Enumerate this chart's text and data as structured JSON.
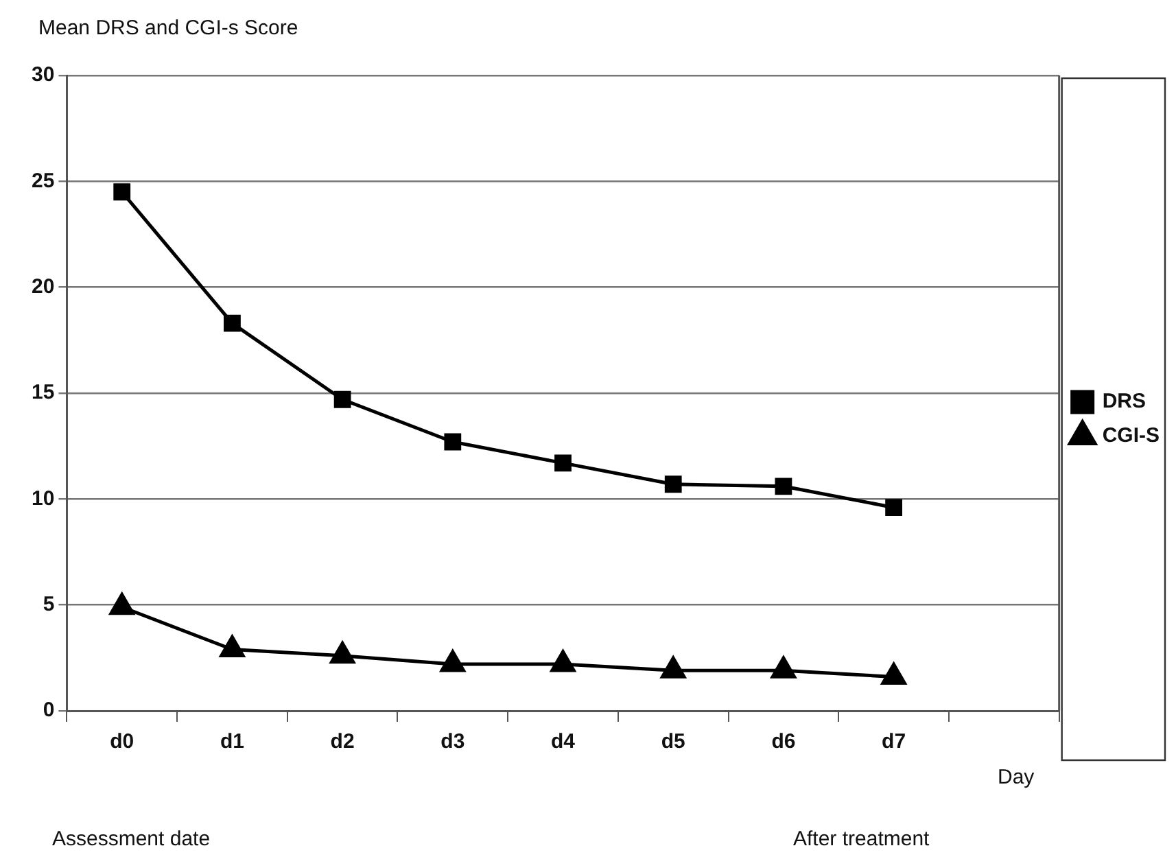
{
  "chart_data": {
    "type": "line",
    "ylabel": "Mean DRS and CGI-s Score",
    "xlabel": "Day",
    "categories": [
      "d0",
      "d1",
      "d2",
      "d3",
      "d4",
      "d5",
      "d6",
      "d7",
      null
    ],
    "series": [
      {
        "name": "DRS",
        "color": "#000000",
        "marker": "square",
        "values": [
          24.5,
          18.3,
          14.7,
          12.7,
          11.7,
          10.7,
          10.6,
          9.6,
          null
        ]
      },
      {
        "name": "CGI-S",
        "color": "#000000",
        "marker": "triangle",
        "values": [
          4.9,
          2.9,
          2.6,
          2.2,
          2.2,
          1.9,
          1.9,
          1.6,
          null
        ]
      }
    ],
    "ylim": [
      0,
      30
    ],
    "yticks": [
      0,
      5,
      10,
      15,
      20,
      25,
      30
    ],
    "grid": "y",
    "legend": "right",
    "annotations": [
      "Assessment date",
      "After treatment"
    ]
  }
}
